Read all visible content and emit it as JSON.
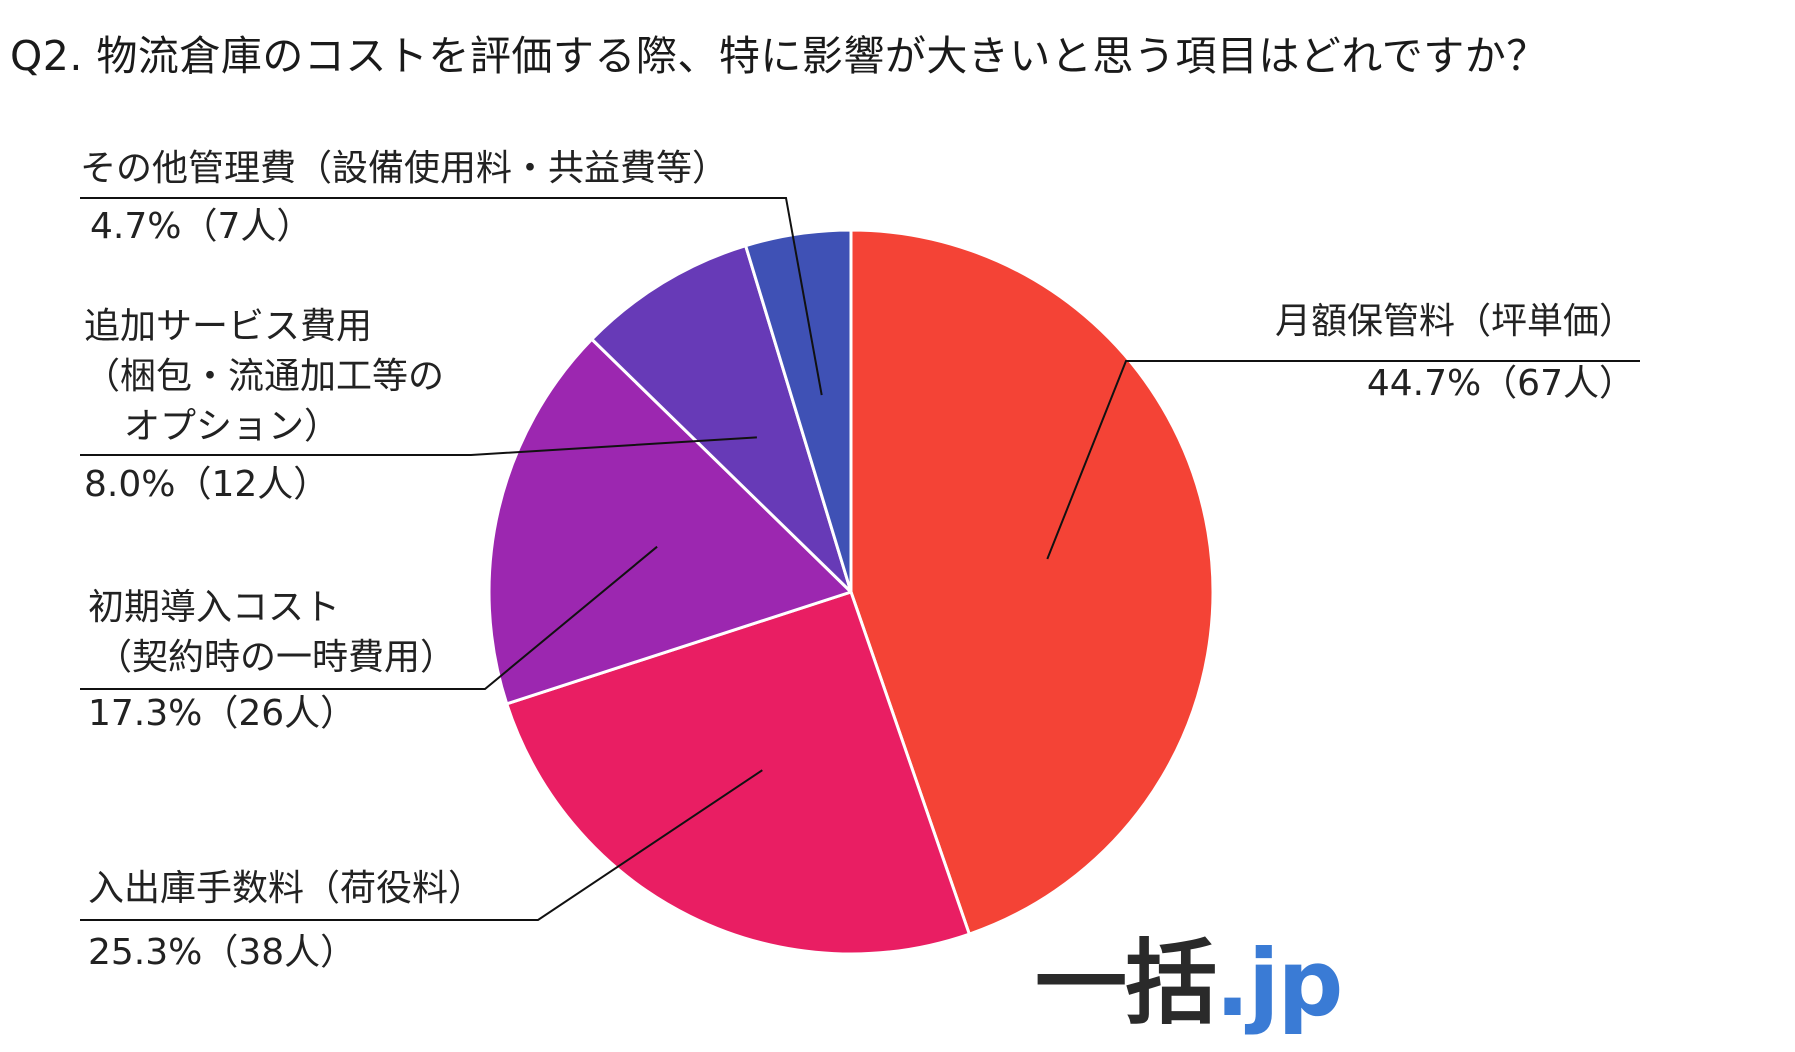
{
  "title": "Q2. 物流倉庫のコストを評価する際、特に影響が大きいと思う項目はどれですか？",
  "watermark": {
    "main": "一括",
    "domain": ".jp"
  },
  "chart_data": {
    "type": "pie",
    "title": "Q2. 物流倉庫のコストを評価する際、特に影響が大きいと思う項目はどれですか？",
    "start_angle_deg": 0,
    "direction": "clockwise",
    "slices": [
      {
        "key": "monthly",
        "label_lines": [
          "月額保管料（坪単価）"
        ],
        "value": 44.7,
        "count": 67,
        "value_text": "44.7%（67人）",
        "color": "#f44336"
      },
      {
        "key": "handling",
        "label_lines": [
          "入出庫手数料（荷役料）"
        ],
        "value": 25.3,
        "count": 38,
        "value_text": "25.3%（38人）",
        "color": "#e91e63"
      },
      {
        "key": "initial",
        "label_lines": [
          "初期導入コスト",
          "（契約時の一時費用）"
        ],
        "value": 17.3,
        "count": 26,
        "value_text": "17.3%（26人）",
        "color": "#9c27b0"
      },
      {
        "key": "additional",
        "label_lines": [
          "追加サービス費用",
          "（梱包・流通加工等の",
          "オプション）"
        ],
        "value": 8.0,
        "count": 12,
        "value_text": "8.0%（12人）",
        "color": "#673ab7"
      },
      {
        "key": "other",
        "label_lines": [
          "その他管理費（設備使用料・共益費等）"
        ],
        "value": 4.7,
        "count": 7,
        "value_text": "4.7%（7人）",
        "color": "#3f51b5"
      }
    ]
  }
}
